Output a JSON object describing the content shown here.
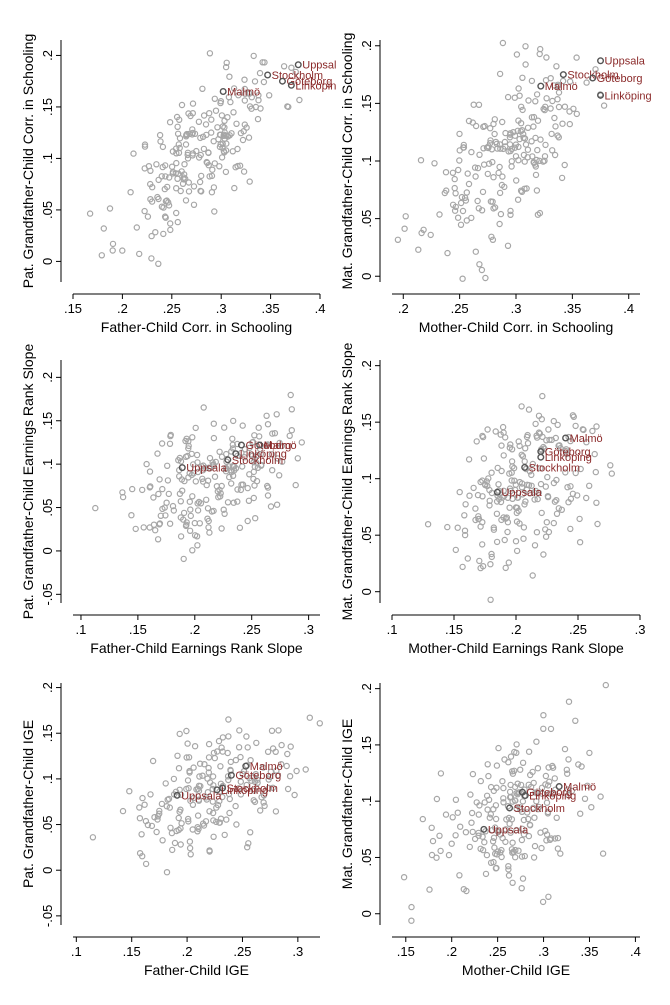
{
  "chart_data": [
    {
      "type": "scatter",
      "id": "pat-schooling",
      "xlabel": "Father-Child Corr. in Schooling",
      "ylabel": "Pat. Grandfather-Child Corr. in Schooling",
      "xlim": [
        0.15,
        0.4
      ],
      "ylim": [
        -0.02,
        0.215
      ],
      "xticks": [
        0.15,
        0.2,
        0.25,
        0.3,
        0.35,
        0.4
      ],
      "xtick_labels": [
        ".15",
        ".2",
        ".25",
        ".3",
        ".35",
        ".4"
      ],
      "yticks": [
        0,
        0.05,
        0.1,
        0.15,
        0.2
      ],
      "ytick_labels": [
        "0",
        ".05",
        ".1",
        ".15",
        ".2"
      ],
      "seed": 11,
      "n": 220,
      "cx": 0.28,
      "cy": 0.11,
      "sx": 0.04,
      "sy": 0.045,
      "rho": 0.72,
      "highlights": [
        {
          "label": "Uppsal",
          "x": 0.378,
          "y": 0.191
        },
        {
          "label": "Stockholm",
          "x": 0.347,
          "y": 0.181
        },
        {
          "label": "Göteborg",
          "x": 0.362,
          "y": 0.175
        },
        {
          "label": "Linköpin",
          "x": 0.371,
          "y": 0.171
        },
        {
          "label": "Malmö",
          "x": 0.302,
          "y": 0.165
        }
      ]
    },
    {
      "type": "scatter",
      "id": "mat-schooling",
      "xlabel": "Mother-Child Corr. in Schooling",
      "ylabel": "Mat. Grandfather-Child Corr. in Schooling",
      "xlim": [
        0.19,
        0.41
      ],
      "ylim": [
        -0.005,
        0.205
      ],
      "xticks": [
        0.2,
        0.25,
        0.3,
        0.35,
        0.4
      ],
      "xtick_labels": [
        ".2",
        ".25",
        ".3",
        ".35",
        ".4"
      ],
      "yticks": [
        0,
        0.05,
        0.1,
        0.15,
        0.2
      ],
      "ytick_labels": [
        "0",
        ".05",
        ".1",
        ".15",
        ".2"
      ],
      "seed": 23,
      "n": 220,
      "cx": 0.29,
      "cy": 0.105,
      "sx": 0.035,
      "sy": 0.04,
      "rho": 0.6,
      "highlights": [
        {
          "label": "Uppsala",
          "x": 0.375,
          "y": 0.187
        },
        {
          "label": "Stockholm",
          "x": 0.342,
          "y": 0.175
        },
        {
          "label": "Göteborg",
          "x": 0.368,
          "y": 0.172
        },
        {
          "label": "Malmö",
          "x": 0.322,
          "y": 0.165
        },
        {
          "label": "Linköping",
          "x": 0.375,
          "y": 0.157
        }
      ]
    },
    {
      "type": "scatter",
      "id": "pat-earnings",
      "xlabel": "Father-Child Earnings Rank Slope",
      "ylabel": "Pat. Grandfather-Child Earnings Rank Slope",
      "xlim": [
        0.093,
        0.31
      ],
      "ylim": [
        -0.06,
        0.22
      ],
      "xticks": [
        0.1,
        0.15,
        0.2,
        0.25,
        0.3
      ],
      "xtick_labels": [
        ".1",
        ".15",
        ".2",
        ".25",
        ".3"
      ],
      "yticks": [
        -0.05,
        0,
        0.05,
        0.1,
        0.15,
        0.2
      ],
      "ytick_labels": [
        "-.05",
        "0",
        ".05",
        ".1",
        ".15",
        ".2"
      ],
      "seed": 37,
      "n": 220,
      "cx": 0.215,
      "cy": 0.085,
      "sx": 0.033,
      "sy": 0.038,
      "rho": 0.42,
      "highlights": [
        {
          "label": "Göteborg",
          "x": 0.241,
          "y": 0.122
        },
        {
          "label": "Malmö",
          "x": 0.257,
          "y": 0.122
        },
        {
          "label": "Linköping",
          "x": 0.236,
          "y": 0.112
        },
        {
          "label": "Stockholm",
          "x": 0.229,
          "y": 0.105
        },
        {
          "label": "Uppsala",
          "x": 0.189,
          "y": 0.096
        }
      ]
    },
    {
      "type": "scatter",
      "id": "mat-earnings",
      "xlabel": "Mother-Child Earnings Rank Slope",
      "ylabel": "Mat. Grandfather-Child Earnings Rank Slope",
      "xlim": [
        0.1,
        0.3
      ],
      "ylim": [
        -0.01,
        0.205
      ],
      "xticks": [
        0.1,
        0.15,
        0.2,
        0.25,
        0.3
      ],
      "xtick_labels": [
        ".1",
        ".15",
        ".2",
        ".25",
        ".3"
      ],
      "yticks": [
        0,
        0.05,
        0.1,
        0.15,
        0.2
      ],
      "ytick_labels": [
        "0",
        ".05",
        ".1",
        ".15",
        ".2"
      ],
      "seed": 51,
      "n": 220,
      "cx": 0.205,
      "cy": 0.09,
      "sx": 0.03,
      "sy": 0.038,
      "rho": 0.42,
      "highlights": [
        {
          "label": "Malmö",
          "x": 0.24,
          "y": 0.136
        },
        {
          "label": "Göteborg",
          "x": 0.22,
          "y": 0.124
        },
        {
          "label": "Linköping",
          "x": 0.22,
          "y": 0.119
        },
        {
          "label": "Stockholm",
          "x": 0.207,
          "y": 0.11
        },
        {
          "label": "Uppsala",
          "x": 0.185,
          "y": 0.088
        }
      ]
    },
    {
      "type": "scatter",
      "id": "pat-ige",
      "xlabel": "Father-Child IGE",
      "ylabel": "Pat. Grandfather-Child IGE",
      "xlim": [
        0.097,
        0.32
      ],
      "ylim": [
        -0.06,
        0.205
      ],
      "xticks": [
        0.1,
        0.15,
        0.2,
        0.25,
        0.3
      ],
      "xtick_labels": [
        ".1",
        ".15",
        ".2",
        ".25",
        ".3"
      ],
      "yticks": [
        -0.05,
        0,
        0.05,
        0.1,
        0.15,
        0.2
      ],
      "ytick_labels": [
        "-.05",
        "0",
        ".05",
        ".1",
        ".15",
        ".2"
      ],
      "seed": 67,
      "n": 200,
      "cx": 0.22,
      "cy": 0.078,
      "sx": 0.036,
      "sy": 0.035,
      "rho": 0.45,
      "highlights": [
        {
          "label": "Malmö",
          "x": 0.253,
          "y": 0.114
        },
        {
          "label": "Göteborg",
          "x": 0.24,
          "y": 0.104
        },
        {
          "label": "Stockholm",
          "x": 0.232,
          "y": 0.09
        },
        {
          "label": "Linköping",
          "x": 0.227,
          "y": 0.088
        },
        {
          "label": "Uppsala",
          "x": 0.191,
          "y": 0.082
        }
      ]
    },
    {
      "type": "scatter",
      "id": "mat-ige",
      "xlabel": "Mother-Child IGE",
      "ylabel": "Mat. Grandfather-Child IGE",
      "xlim": [
        0.135,
        0.405
      ],
      "ylim": [
        -0.01,
        0.205
      ],
      "xticks": [
        0.15,
        0.2,
        0.25,
        0.3,
        0.35,
        0.4
      ],
      "xtick_labels": [
        ".15",
        ".2",
        ".25",
        ".3",
        ".35",
        ".4"
      ],
      "yticks": [
        0,
        0.05,
        0.1,
        0.15,
        0.2
      ],
      "ytick_labels": [
        "0",
        ".05",
        ".1",
        ".15",
        ".2"
      ],
      "seed": 83,
      "n": 220,
      "cx": 0.265,
      "cy": 0.088,
      "sx": 0.042,
      "sy": 0.035,
      "rho": 0.4,
      "highlights": [
        {
          "label": "Malmö",
          "x": 0.317,
          "y": 0.113
        },
        {
          "label": "Göteborg",
          "x": 0.277,
          "y": 0.108
        },
        {
          "label": "Linköping",
          "x": 0.28,
          "y": 0.105
        },
        {
          "label": "Stockholm",
          "x": 0.263,
          "y": 0.094
        },
        {
          "label": "Uppsala",
          "x": 0.235,
          "y": 0.075
        }
      ]
    }
  ]
}
